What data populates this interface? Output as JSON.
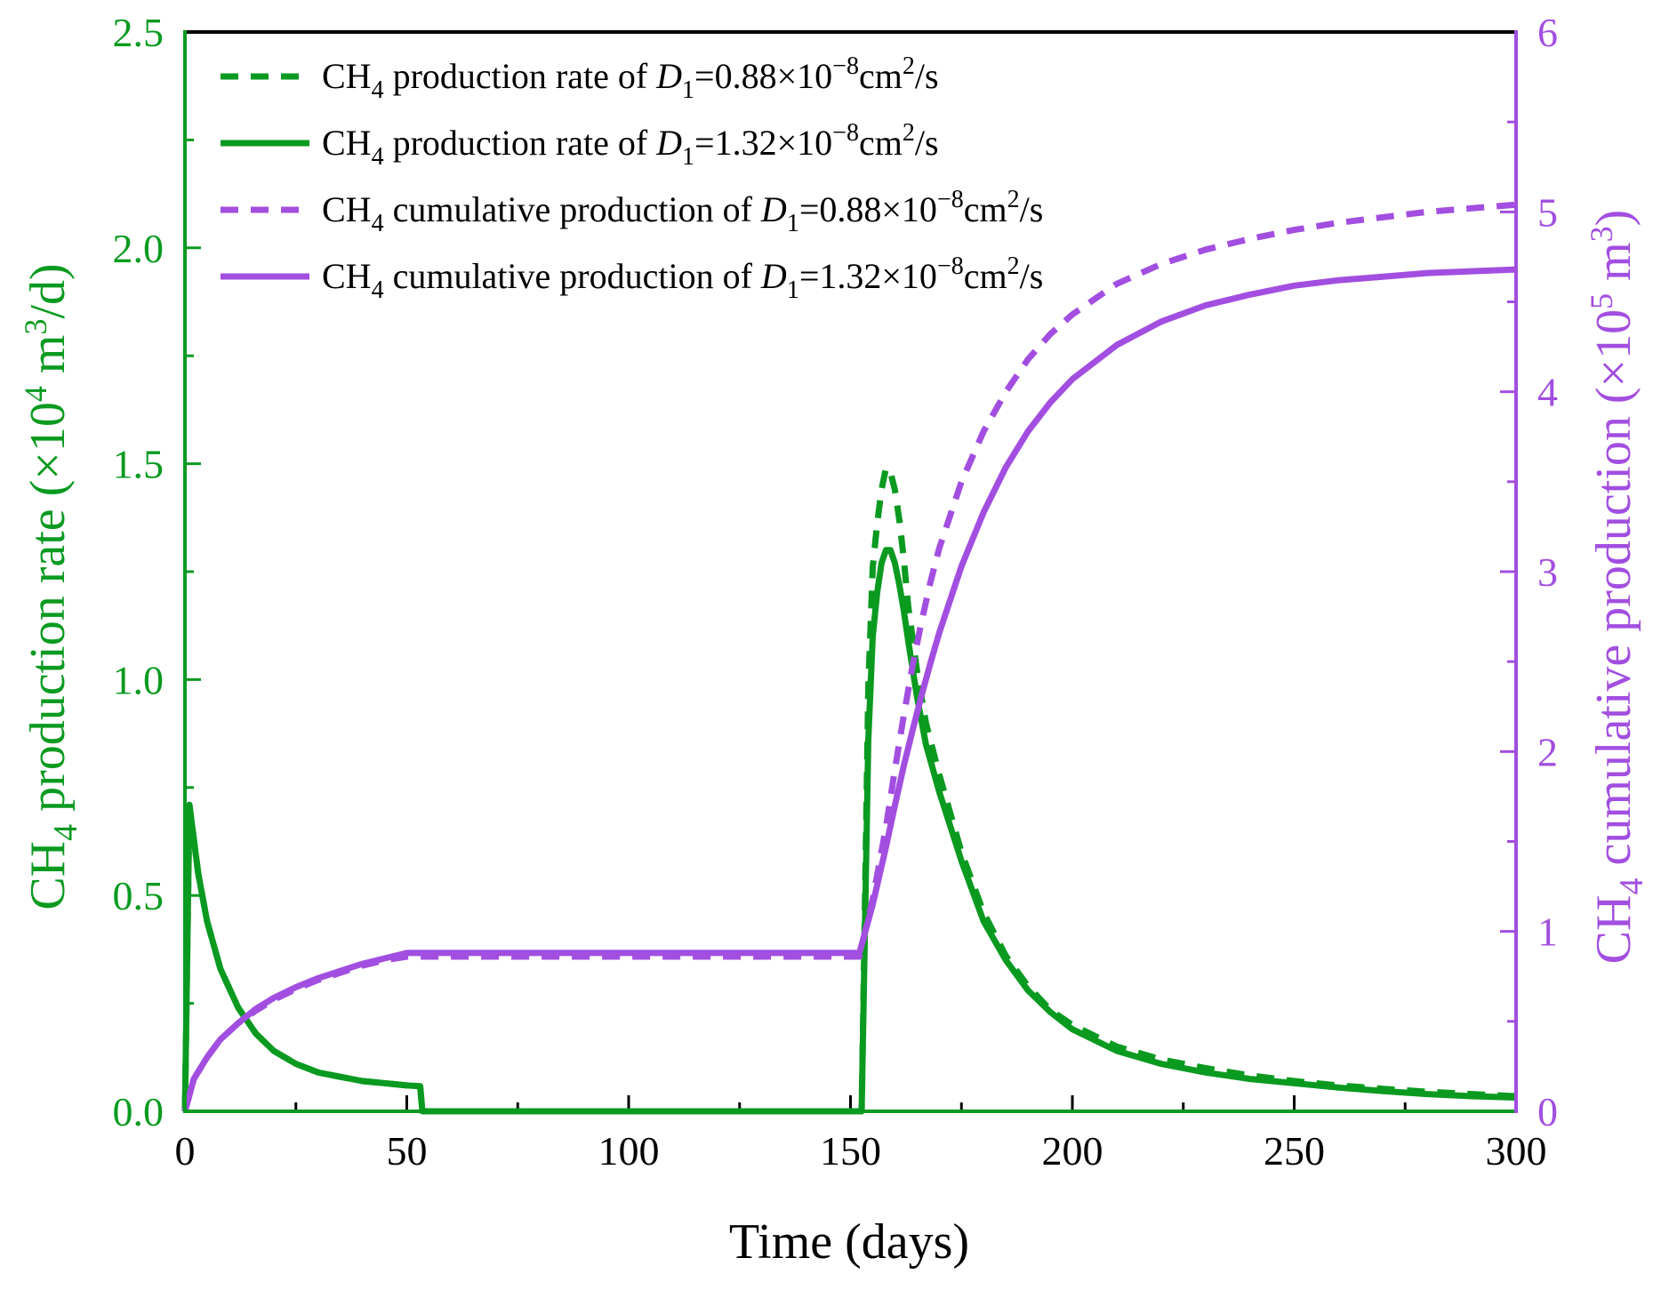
{
  "colors": {
    "green": "#0a9a20",
    "purple": "#a24ee0",
    "frame": "#000000"
  },
  "chart_data": {
    "type": "line",
    "xlabel": "Time (days)",
    "ylabel_left": {
      "pre": "CH",
      "sub": "4",
      "mid": " production rate (×10",
      "sup": "4",
      "mid2": " m",
      "sup2": "3",
      "post": "/d)"
    },
    "ylabel_right": {
      "pre": "CH",
      "sub": "4",
      "mid": " cumulative production (×10",
      "sup": "5",
      "mid2": " m",
      "sup2": "3",
      "post": ")"
    },
    "xlim": [
      0,
      300
    ],
    "ylim_left": [
      0,
      2.5
    ],
    "ylim_right": [
      0,
      6
    ],
    "xticks": [
      0,
      50,
      100,
      150,
      200,
      250,
      300
    ],
    "xtick_labels": [
      "0",
      "50",
      "100",
      "150",
      "200",
      "250",
      "300"
    ],
    "yticks_left": [
      0,
      0.5,
      1.0,
      1.5,
      2.0,
      2.5
    ],
    "ytick_labels_left": [
      "0.0",
      "0.5",
      "1.0",
      "1.5",
      "2.0",
      "2.5"
    ],
    "yticks_right": [
      0,
      1,
      2,
      3,
      4,
      5,
      6
    ],
    "ytick_labels_right": [
      "0",
      "1",
      "2",
      "3",
      "4",
      "5",
      "6"
    ],
    "legend_position": "top-left",
    "series": [
      {
        "id": "rate_d088",
        "name": {
          "pre": "CH",
          "sub": "4",
          "mid": " production rate of ",
          "var": "D",
          "varsub": "1",
          "val": "=0.88×10",
          "exp": "−8",
          "unit": "cm",
          "unitsup": "2",
          "post": "/s"
        },
        "axis": "left",
        "color": "green",
        "style": "dashed",
        "x": [
          0,
          1,
          3,
          5,
          8,
          12,
          16,
          20,
          25,
          30,
          35,
          40,
          45,
          50,
          53,
          53.5,
          60,
          80,
          100,
          120,
          140,
          152.5,
          153,
          154,
          155,
          156,
          157,
          158,
          159,
          160,
          161,
          162,
          163,
          165,
          167,
          170,
          175,
          180,
          185,
          190,
          195,
          200,
          210,
          220,
          230,
          240,
          250,
          260,
          270,
          280,
          290,
          300
        ],
        "y": [
          0,
          0.71,
          0.55,
          0.44,
          0.33,
          0.24,
          0.18,
          0.14,
          0.11,
          0.09,
          0.08,
          0.07,
          0.065,
          0.06,
          0.058,
          0,
          0,
          0,
          0,
          0,
          0,
          0,
          0.32,
          0.98,
          1.26,
          1.36,
          1.44,
          1.49,
          1.48,
          1.44,
          1.37,
          1.28,
          1.17,
          1.02,
          0.9,
          0.78,
          0.6,
          0.46,
          0.36,
          0.29,
          0.235,
          0.2,
          0.15,
          0.12,
          0.1,
          0.083,
          0.07,
          0.06,
          0.052,
          0.045,
          0.04,
          0.035
        ]
      },
      {
        "id": "rate_d132",
        "name": {
          "pre": "CH",
          "sub": "4",
          "mid": " production rate of ",
          "var": "D",
          "varsub": "1",
          "val": "=1.32×10",
          "exp": "−8",
          "unit": "cm",
          "unitsup": "2",
          "post": "/s"
        },
        "axis": "left",
        "color": "green",
        "style": "solid",
        "x": [
          0,
          1,
          3,
          5,
          8,
          12,
          16,
          20,
          25,
          30,
          35,
          40,
          45,
          50,
          53,
          53.5,
          60,
          80,
          100,
          120,
          140,
          152.5,
          153,
          154,
          155,
          156,
          157,
          158,
          159,
          160,
          161,
          162,
          163,
          165,
          167,
          170,
          175,
          180,
          185,
          190,
          195,
          200,
          210,
          220,
          230,
          240,
          250,
          260,
          270,
          280,
          290,
          300
        ],
        "y": [
          0,
          0.71,
          0.55,
          0.44,
          0.33,
          0.24,
          0.18,
          0.14,
          0.11,
          0.09,
          0.08,
          0.07,
          0.065,
          0.06,
          0.058,
          0,
          0,
          0,
          0,
          0,
          0,
          0,
          0.28,
          0.86,
          1.1,
          1.2,
          1.27,
          1.3,
          1.3,
          1.27,
          1.22,
          1.16,
          1.09,
          0.96,
          0.85,
          0.74,
          0.58,
          0.44,
          0.35,
          0.28,
          0.23,
          0.19,
          0.14,
          0.11,
          0.09,
          0.075,
          0.065,
          0.055,
          0.047,
          0.04,
          0.035,
          0.032
        ]
      },
      {
        "id": "cum_d088",
        "name": {
          "pre": "CH",
          "sub": "4",
          "mid": " cumulative production of ",
          "var": "D",
          "varsub": "1",
          "val": "=0.88×10",
          "exp": "−8",
          "unit": "cm",
          "unitsup": "2",
          "post": "/s"
        },
        "axis": "right",
        "color": "purple",
        "style": "dashed",
        "x": [
          0,
          2,
          5,
          8,
          12,
          16,
          20,
          25,
          30,
          35,
          40,
          45,
          50,
          53,
          80,
          100,
          120,
          140,
          152,
          155,
          158,
          160,
          162,
          164,
          166,
          168,
          170,
          175,
          180,
          185,
          190,
          195,
          200,
          210,
          220,
          230,
          240,
          250,
          260,
          270,
          280,
          290,
          300
        ],
        "y": [
          0,
          0.18,
          0.3,
          0.4,
          0.49,
          0.56,
          0.62,
          0.68,
          0.73,
          0.77,
          0.81,
          0.84,
          0.86,
          0.86,
          0.86,
          0.86,
          0.86,
          0.86,
          0.86,
          1.18,
          1.58,
          1.9,
          2.2,
          2.48,
          2.72,
          2.94,
          3.13,
          3.5,
          3.78,
          4.0,
          4.18,
          4.32,
          4.43,
          4.6,
          4.71,
          4.79,
          4.85,
          4.9,
          4.94,
          4.97,
          5.0,
          5.02,
          5.04
        ]
      },
      {
        "id": "cum_d132",
        "name": {
          "pre": "CH",
          "sub": "4",
          "mid": " cumulative production of ",
          "var": "D",
          "varsub": "1",
          "val": "=1.32×10",
          "exp": "−8",
          "unit": "cm",
          "unitsup": "2",
          "post": "/s"
        },
        "axis": "right",
        "color": "purple",
        "style": "solid",
        "x": [
          0,
          2,
          5,
          8,
          12,
          16,
          20,
          25,
          30,
          35,
          40,
          45,
          50,
          53,
          80,
          100,
          120,
          140,
          152,
          155,
          158,
          160,
          162,
          164,
          166,
          168,
          170,
          175,
          180,
          185,
          190,
          195,
          200,
          210,
          220,
          230,
          240,
          250,
          260,
          270,
          280,
          290,
          300
        ],
        "y": [
          0,
          0.18,
          0.3,
          0.4,
          0.49,
          0.57,
          0.63,
          0.69,
          0.74,
          0.78,
          0.82,
          0.85,
          0.88,
          0.88,
          0.88,
          0.88,
          0.88,
          0.88,
          0.88,
          1.15,
          1.47,
          1.7,
          1.92,
          2.12,
          2.31,
          2.49,
          2.66,
          3.03,
          3.33,
          3.58,
          3.78,
          3.94,
          4.07,
          4.26,
          4.39,
          4.48,
          4.54,
          4.59,
          4.62,
          4.64,
          4.66,
          4.67,
          4.68
        ]
      }
    ]
  }
}
